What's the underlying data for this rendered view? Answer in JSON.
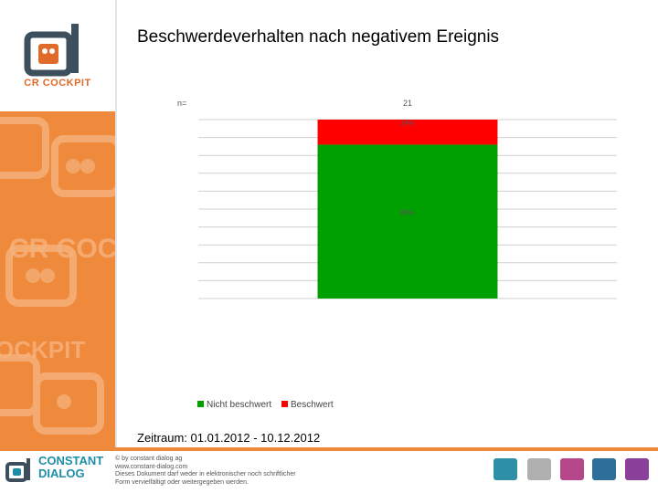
{
  "brand": {
    "logo_caption": "CR COCKPIT",
    "footer_name_1": "CONSTANT",
    "footer_name_2": "DIALOG"
  },
  "slide": {
    "title": "Beschwerdeverhalten nach negativem Ereignis",
    "period": "Zeitraum: 01.01.2012 - 10.12.2012"
  },
  "footer": {
    "legal_lines": [
      "© by constant dialog ag",
      "www.constant-dialog.com",
      "Dieses Dokument darf weder in elektronischer noch schriftlicher",
      "Form vervielfältigt oder weitergegeben werden."
    ]
  },
  "colors": {
    "accent": "#ef8a3c",
    "nicht_beschwert": "#00a000",
    "beschwert": "#ff0000"
  },
  "chart_data": {
    "type": "bar",
    "stacked": true,
    "n_label": "n=",
    "categories": [
      ""
    ],
    "n_values": [
      "21"
    ],
    "series": [
      {
        "name": "Nicht beschwert",
        "values": [
          86
        ],
        "label": "86%",
        "color": "#00a000"
      },
      {
        "name": "Beschwert",
        "values": [
          14
        ],
        "label": "14%",
        "color": "#ff0000"
      }
    ],
    "ylim": [
      0,
      100
    ],
    "grid": true,
    "legend": "bottom"
  }
}
